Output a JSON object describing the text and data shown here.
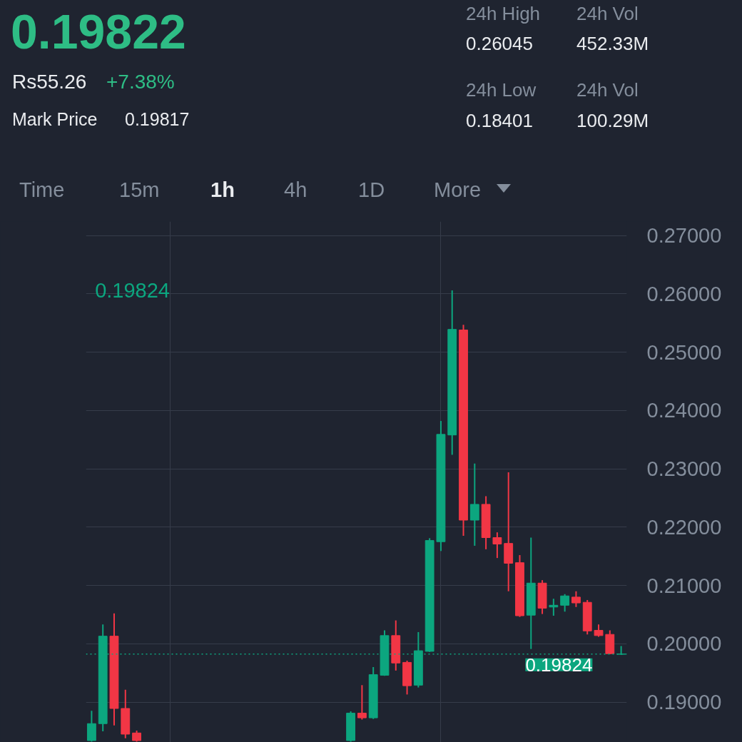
{
  "chart_data": {
    "type": "candlestick",
    "categories": [
      null,
      null,
      null,
      null,
      null,
      null,
      null,
      null,
      null,
      null,
      null,
      null,
      null,
      null,
      null,
      null,
      null,
      null,
      null,
      null,
      null,
      null,
      null,
      null,
      null,
      null,
      null,
      null,
      null,
      null,
      null,
      null,
      null,
      null,
      null,
      null,
      null,
      null,
      null,
      null,
      null,
      null,
      null,
      null,
      null,
      null,
      null,
      null
    ],
    "ohlc": [
      [
        0.1834,
        0.1885,
        0.1832,
        0.1863
      ],
      [
        0.1863,
        0.2033,
        0.185,
        0.2013
      ],
      [
        0.2013,
        0.2052,
        0.186,
        0.1889
      ],
      [
        0.1889,
        0.1921,
        0.1838,
        0.1845
      ],
      [
        0.1847,
        0.1851,
        0.1832,
        0.1834
      ],
      null,
      null,
      null,
      null,
      null,
      null,
      null,
      null,
      null,
      null,
      null,
      null,
      null,
      null,
      null,
      null,
      null,
      null,
      [
        0.1834,
        0.1884,
        0.1832,
        0.1881
      ],
      [
        0.1881,
        0.1929,
        0.187,
        0.1873
      ],
      [
        0.1873,
        0.196,
        0.1871,
        0.1947
      ],
      [
        0.1946,
        0.2023,
        0.1945,
        0.2014
      ],
      [
        0.2014,
        0.204,
        0.1954,
        0.1967
      ],
      [
        0.1968,
        0.1971,
        0.1913,
        0.1928
      ],
      [
        0.1929,
        0.202,
        0.1925,
        0.1988
      ],
      [
        0.1987,
        0.2181,
        0.1986,
        0.2177
      ],
      [
        0.2175,
        0.2382,
        0.2159,
        0.2359
      ],
      [
        0.2358,
        0.2606,
        0.2324,
        0.2539
      ],
      [
        0.2538,
        0.2547,
        0.2185,
        0.2212
      ],
      [
        0.2212,
        0.2309,
        0.2168,
        0.2239
      ],
      [
        0.2239,
        0.2253,
        0.2162,
        0.2182
      ],
      [
        0.2182,
        0.2191,
        0.2147,
        0.2171
      ],
      [
        0.2172,
        0.2294,
        0.209,
        0.2138
      ],
      [
        0.2139,
        0.2152,
        0.2046,
        0.2048
      ],
      [
        0.2049,
        0.2182,
        0.1991,
        0.2104
      ],
      [
        0.2104,
        0.2109,
        0.2051,
        0.2061
      ],
      [
        0.2063,
        0.2077,
        0.2048,
        0.2066
      ],
      [
        0.2066,
        0.2085,
        0.2055,
        0.2082
      ],
      [
        0.208,
        0.209,
        0.2063,
        0.207
      ],
      [
        0.2071,
        0.2075,
        0.2016,
        0.2022
      ],
      [
        0.2023,
        0.2033,
        0.2012,
        0.2014
      ],
      [
        0.2016,
        0.2023,
        0.1982,
        0.1983
      ],
      [
        0.1982,
        0.1996,
        0.1981,
        0.19824
      ]
    ],
    "colors": [
      "#0ca67f",
      "#0ca67f",
      "#f23645",
      "#f23645",
      "#f23645",
      null,
      null,
      null,
      null,
      null,
      null,
      null,
      null,
      null,
      null,
      null,
      null,
      null,
      null,
      null,
      null,
      null,
      null,
      "#0ca67f",
      "#f23645",
      "#0ca67f",
      "#0ca67f",
      "#f23645",
      "#f23645",
      "#0ca67f",
      "#0ca67f",
      "#0ca67f",
      "#0ca67f",
      "#f23645",
      "#0ca67f",
      "#f23645",
      "#f23645",
      "#f23645",
      "#f23645",
      "#0ca67f",
      "#f23645",
      "#0ca67f",
      "#0ca67f",
      "#f23645",
      "#f23645",
      "#f23645",
      "#f23645",
      "#0ca67f"
    ],
    "ylim": [
      0.1826,
      0.2724
    ],
    "yticks": [
      {
        "value": 0.19,
        "label": "0.19000"
      },
      {
        "value": 0.2,
        "label": "0.20000"
      },
      {
        "value": 0.21,
        "label": "0.21000"
      },
      {
        "value": 0.22,
        "label": "0.22000"
      },
      {
        "value": 0.23,
        "label": "0.23000"
      },
      {
        "value": 0.24,
        "label": "0.24000"
      },
      {
        "value": 0.25,
        "label": "0.25000"
      },
      {
        "value": 0.26,
        "label": "0.26000"
      },
      {
        "value": 0.27,
        "label": "0.27000"
      }
    ],
    "tick_labels": "y",
    "grid": true,
    "ref_lines": [
      {
        "axis": "y",
        "value": 0.19824,
        "label": "0.19824",
        "color": "#0ca67f",
        "line_style": "dotted"
      }
    ],
    "annotations": [
      "0.19822",
      "Rs55.26",
      "+7.38%",
      "Mark Price",
      "0.19817",
      "24h High",
      "0.26045",
      "24h Vol",
      "452.33M",
      "24h Low",
      "0.18401",
      "24h Vol",
      "100.29M",
      "Time",
      "15m",
      "1h",
      "4h",
      "1D",
      "More",
      "0.19824"
    ]
  }
}
